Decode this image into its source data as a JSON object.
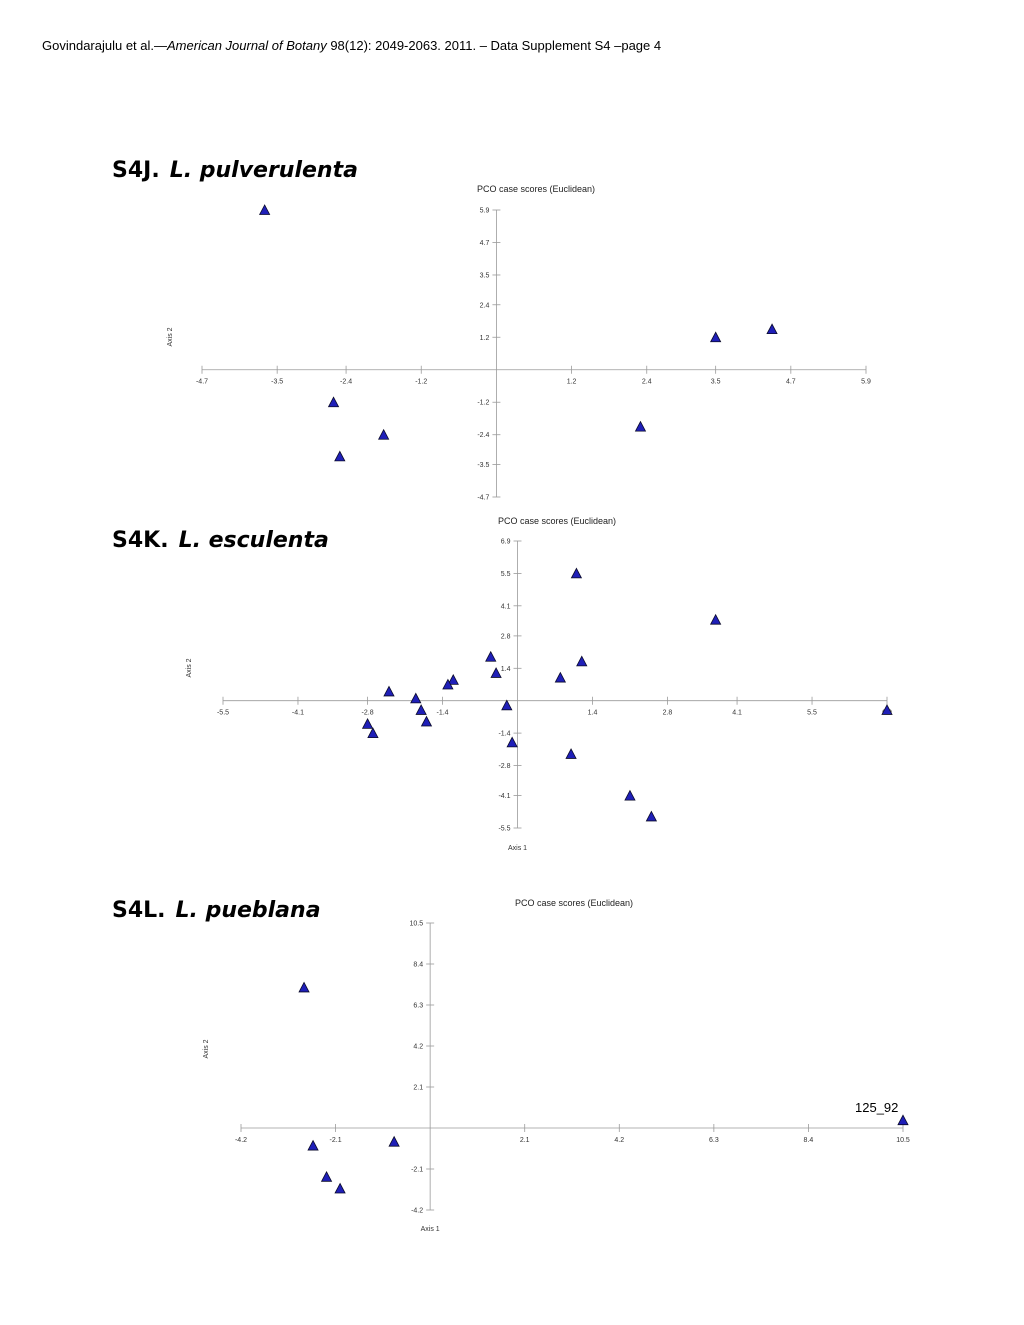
{
  "header": {
    "authors": "Govindarajulu et al.—",
    "journal": "American Journal of Botany",
    "citation": " 98(12): 2049-2063. 2011. – Data Supplement S4 –page 4"
  },
  "plots": [
    {
      "id": "S4J.",
      "species": "L. pulverulenta"
    },
    {
      "id": "S4K.",
      "species": "L. esculenta"
    },
    {
      "id": "S4L.",
      "species": "L. pueblana"
    }
  ],
  "colors": {
    "marker_fill": "#1f1fb8",
    "marker_stroke": "#0a0a2a",
    "axis": "#9a9a9a"
  },
  "chart_data": [
    {
      "type": "scatter",
      "title": "PCO case scores (Euclidean)",
      "xlabel": "",
      "ylabel": "Axis 2",
      "xticks": [
        "-4.7",
        "-3.5",
        "-2.4",
        "-1.2",
        "1.2",
        "2.4",
        "3.5",
        "4.7",
        "5.9"
      ],
      "yticks": [
        "5.9",
        "4.7",
        "3.5",
        "2.4",
        "1.2",
        "-1.2",
        "-2.4",
        "-3.5",
        "-4.7"
      ],
      "xlim": [
        -4.7,
        5.9
      ],
      "ylim": [
        -4.7,
        5.9
      ],
      "marker": "triangle",
      "points": [
        {
          "x": -3.7,
          "y": 5.9
        },
        {
          "x": -2.6,
          "y": -1.2
        },
        {
          "x": -1.8,
          "y": -2.4
        },
        {
          "x": -2.5,
          "y": -3.2
        },
        {
          "x": 2.3,
          "y": -2.1
        },
        {
          "x": 3.5,
          "y": 1.2
        },
        {
          "x": 4.4,
          "y": 1.5
        }
      ]
    },
    {
      "type": "scatter",
      "title": "PCO case scores (Euclidean)",
      "xlabel": "Axis 1",
      "ylabel": "Axis 2",
      "xticks": [
        "-5.5",
        "-4.1",
        "-2.8",
        "-1.4",
        "1.4",
        "2.8",
        "4.1",
        "5.5",
        "6.9"
      ],
      "yticks": [
        "6.9",
        "5.5",
        "4.1",
        "2.8",
        "1.4",
        "-1.4",
        "-2.8",
        "-4.1",
        "-5.5"
      ],
      "xlim": [
        -5.5,
        6.9
      ],
      "ylim": [
        -5.5,
        6.9
      ],
      "marker": "triangle",
      "points": [
        {
          "x": 1.1,
          "y": 5.5
        },
        {
          "x": 3.7,
          "y": 3.5
        },
        {
          "x": 1.2,
          "y": 1.7
        },
        {
          "x": 0.8,
          "y": 1.0
        },
        {
          "x": -0.5,
          "y": 1.9
        },
        {
          "x": -0.4,
          "y": 1.2
        },
        {
          "x": -1.2,
          "y": 0.9
        },
        {
          "x": -1.3,
          "y": 0.7
        },
        {
          "x": -2.4,
          "y": 0.4
        },
        {
          "x": -1.9,
          "y": 0.1
        },
        {
          "x": -1.8,
          "y": -0.4
        },
        {
          "x": -1.7,
          "y": -0.9
        },
        {
          "x": -2.8,
          "y": -1.0
        },
        {
          "x": -2.7,
          "y": -1.4
        },
        {
          "x": -0.2,
          "y": -0.2
        },
        {
          "x": -0.1,
          "y": -1.8
        },
        {
          "x": 1.0,
          "y": -2.3
        },
        {
          "x": 2.1,
          "y": -4.1
        },
        {
          "x": 2.5,
          "y": -5.0
        },
        {
          "x": 6.9,
          "y": -0.4
        }
      ]
    },
    {
      "type": "scatter",
      "title": "PCO case scores (Euclidean)",
      "xlabel": "Axis 1",
      "ylabel": "Axis 2",
      "xticks": [
        "-4.2",
        "-2.1",
        "2.1",
        "4.2",
        "6.3",
        "8.4",
        "10.5"
      ],
      "yticks": [
        "10.5",
        "8.4",
        "6.3",
        "4.2",
        "2.1",
        "-2.1",
        "-4.2"
      ],
      "xlim": [
        -4.2,
        10.5
      ],
      "ylim": [
        -4.2,
        10.5
      ],
      "marker": "triangle",
      "points": [
        {
          "x": -2.8,
          "y": 7.2
        },
        {
          "x": -2.6,
          "y": -0.9
        },
        {
          "x": -2.3,
          "y": -2.5
        },
        {
          "x": -2.0,
          "y": -3.1
        },
        {
          "x": -0.8,
          "y": -0.7
        },
        {
          "x": 10.5,
          "y": 0.4,
          "label": "125_92"
        }
      ]
    }
  ]
}
